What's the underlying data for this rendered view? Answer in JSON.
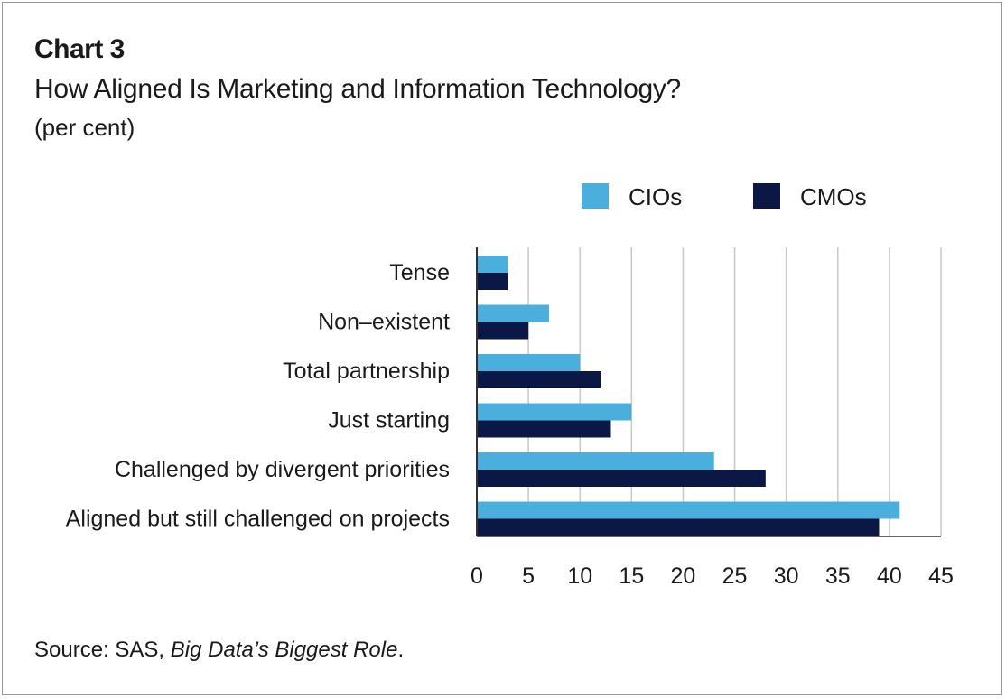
{
  "header": {
    "chart_label": "Chart 3",
    "title": "How Aligned Is Marketing and Information Technology?",
    "subtitle": "(per cent)"
  },
  "footer": {
    "source_prefix": "Source: SAS, ",
    "source_title": "Big Data’s Biggest Role",
    "source_suffix": "."
  },
  "colors": {
    "cios": "#4bafde",
    "cmos": "#0b1845",
    "grid": "#c8c8c8",
    "axis": "#333333",
    "text": "#1a1a1a"
  },
  "chart_data": {
    "type": "bar",
    "orientation": "horizontal",
    "categories": [
      "Tense",
      "Non–existent",
      "Total partnership",
      "Just starting",
      "Challenged by divergent priorities",
      "Aligned but still challenged on projects"
    ],
    "series": [
      {
        "name": "CIOs",
        "values": [
          3,
          7,
          10,
          15,
          23,
          41
        ]
      },
      {
        "name": "CMOs",
        "values": [
          3,
          5,
          12,
          13,
          28,
          39
        ]
      }
    ],
    "xlim": [
      0,
      45
    ],
    "xticks": [
      0,
      5,
      10,
      15,
      20,
      25,
      30,
      35,
      40,
      45
    ],
    "grid": "vertical",
    "legend_position": "top-right"
  }
}
